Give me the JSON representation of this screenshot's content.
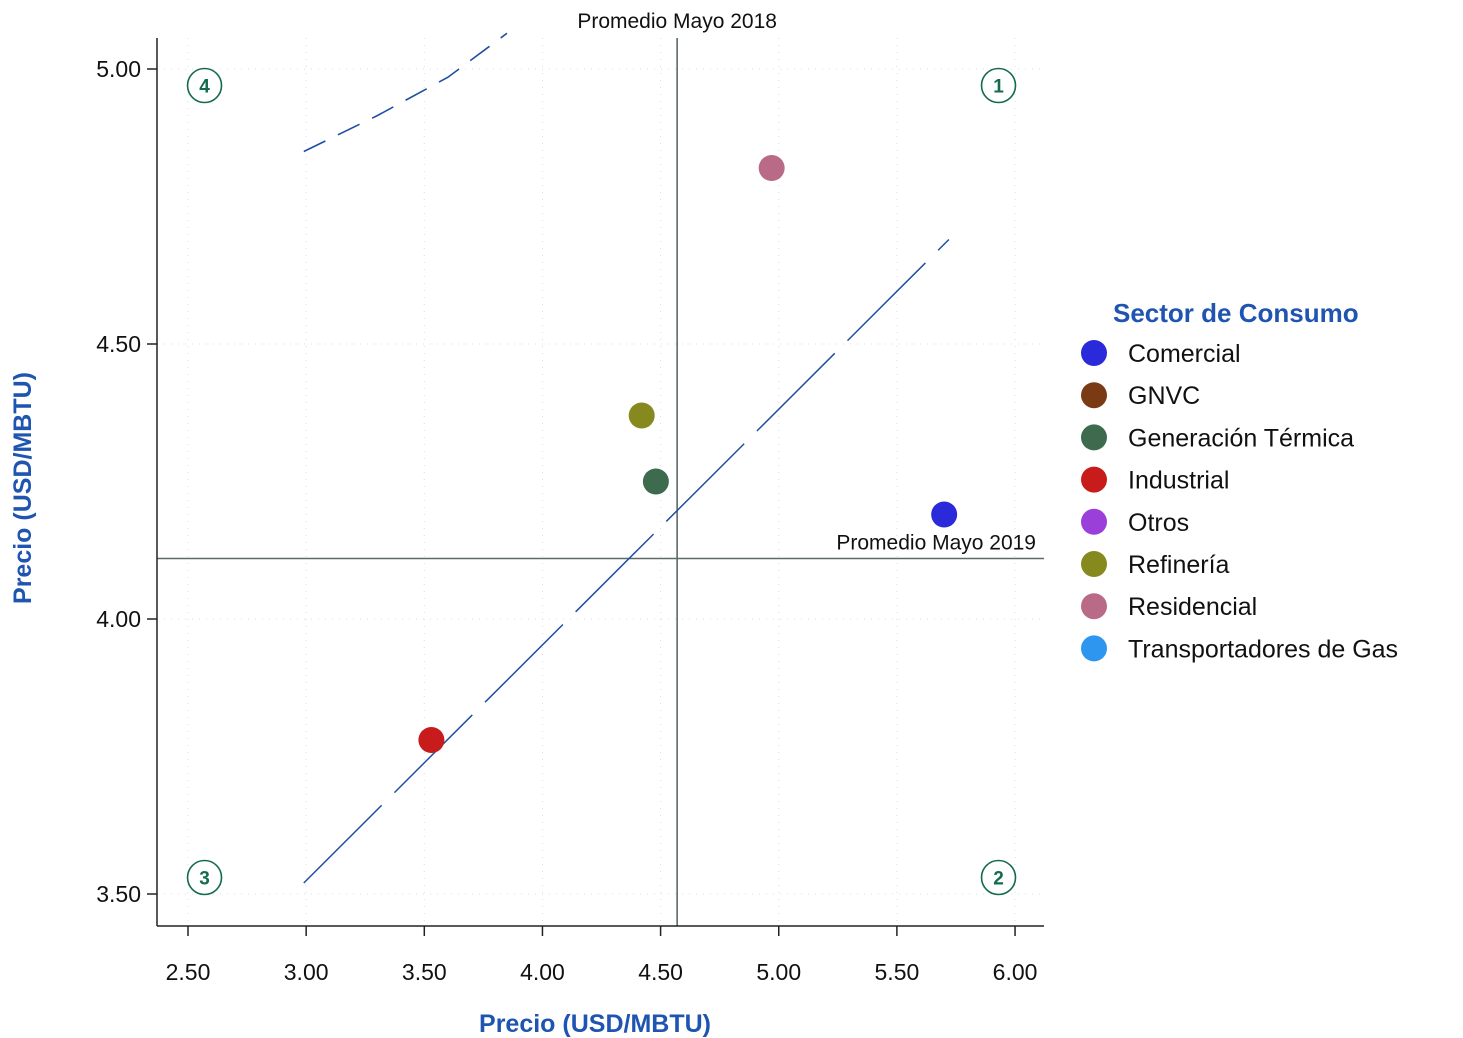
{
  "chart_data": {
    "type": "scatter",
    "xlabel": "Precio (USD/MBTU)",
    "ylabel": "Precio (USD/MBTU)",
    "xlim": [
      2.37,
      6.13
    ],
    "ylim": [
      3.445,
      5.055
    ],
    "x_ticks": [
      "2.50",
      "3.00",
      "3.50",
      "4.00",
      "4.50",
      "5.00",
      "5.50",
      "6.00"
    ],
    "y_ticks": [
      "3.50",
      "4.00",
      "4.50",
      "5.00"
    ],
    "grid": true,
    "legend_title": "Sector de Consumo",
    "legend_position": "right",
    "series": [
      {
        "name": "Comercial",
        "color": "#2a2adb",
        "points": [
          [
            5.7,
            4.19
          ]
        ]
      },
      {
        "name": "GNVC",
        "color": "#7a3a14",
        "points": []
      },
      {
        "name": "Generación Térmica",
        "color": "#3e6b4e",
        "points": [
          [
            4.48,
            4.25
          ]
        ]
      },
      {
        "name": "Industrial",
        "color": "#c81c1c",
        "points": [
          [
            3.53,
            3.78
          ]
        ]
      },
      {
        "name": "Otros",
        "color": "#9a3fd9",
        "points": []
      },
      {
        "name": "Refinería",
        "color": "#86891e",
        "points": [
          [
            4.42,
            4.37
          ]
        ]
      },
      {
        "name": "Residencial",
        "color": "#b96a86",
        "points": [
          [
            4.97,
            4.82
          ]
        ]
      },
      {
        "name": "Transportadores de Gas",
        "color": "#2f96f0",
        "points": []
      }
    ],
    "reference_lines": {
      "vertical": {
        "x": 4.57,
        "label": "Promedio Mayo 2018"
      },
      "horizontal": {
        "y": 4.11,
        "label": "Promedio Mayo 2019"
      }
    },
    "fit_line": {
      "from": [
        2.99,
        3.52
      ],
      "to": [
        5.72,
        4.69
      ],
      "color": "#1f4fa3"
    },
    "dashed_curve": {
      "points": [
        [
          2.99,
          4.85
        ],
        [
          3.3,
          4.915
        ],
        [
          3.6,
          4.985
        ],
        [
          3.85,
          5.065
        ]
      ],
      "color": "#1f4fa3"
    },
    "quadrants": [
      {
        "label": "1",
        "x": 5.93,
        "y": 4.97
      },
      {
        "label": "2",
        "x": 5.93,
        "y": 3.53
      },
      {
        "label": "3",
        "x": 2.57,
        "y": 3.53
      },
      {
        "label": "4",
        "x": 2.57,
        "y": 4.97
      }
    ]
  }
}
